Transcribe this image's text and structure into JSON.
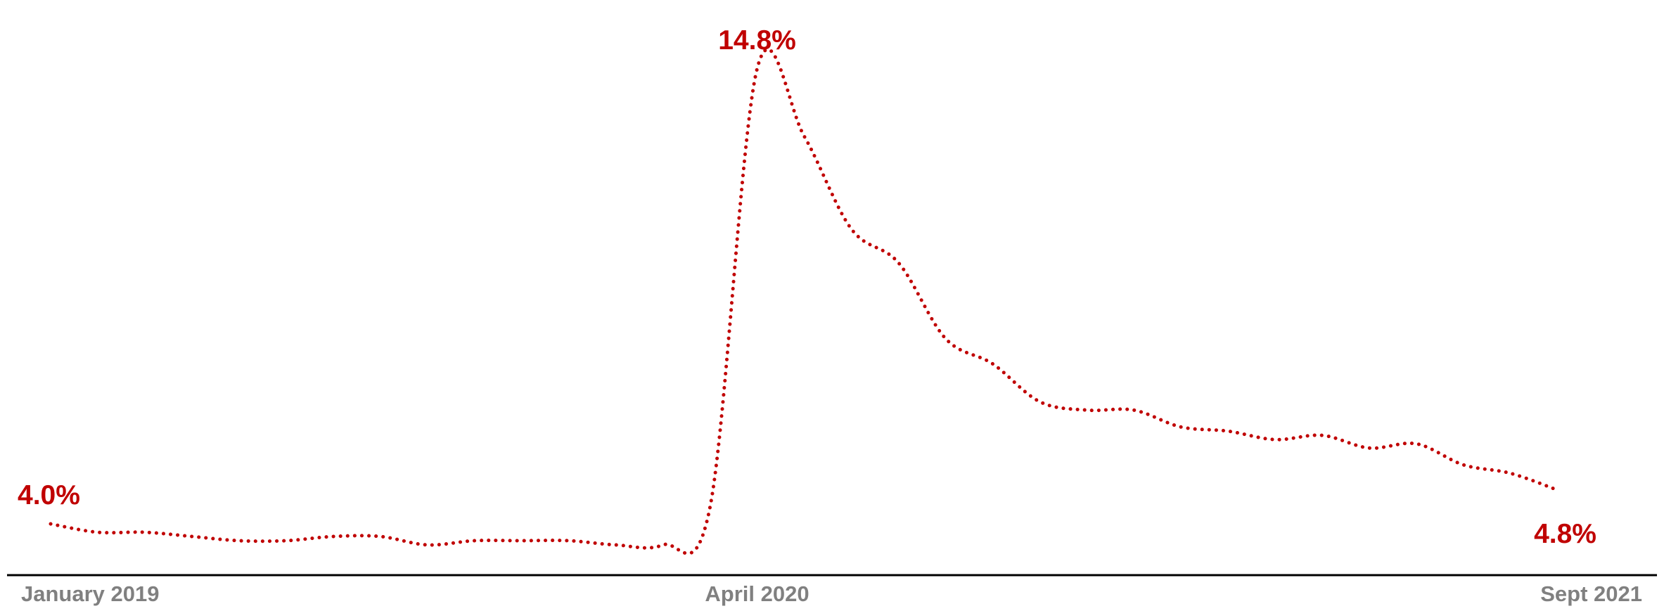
{
  "chart_data": {
    "type": "line",
    "title": "",
    "xlabel": "",
    "ylabel": "",
    "x": [
      "2019-01",
      "2019-02",
      "2019-03",
      "2019-04",
      "2019-05",
      "2019-06",
      "2019-07",
      "2019-08",
      "2019-09",
      "2019-10",
      "2019-11",
      "2019-12",
      "2020-01",
      "2020-02",
      "2020-03",
      "2020-04",
      "2020-05",
      "2020-06",
      "2020-07",
      "2020-08",
      "2020-09",
      "2020-10",
      "2020-11",
      "2020-12",
      "2021-01",
      "2021-02",
      "2021-03",
      "2021-04",
      "2021-05",
      "2021-06",
      "2021-07",
      "2021-08",
      "2021-09"
    ],
    "series": [
      {
        "values": [
          4.0,
          3.8,
          3.8,
          3.7,
          3.6,
          3.6,
          3.7,
          3.7,
          3.5,
          3.6,
          3.6,
          3.6,
          3.5,
          3.5,
          4.4,
          14.8,
          13.2,
          11.0,
          10.2,
          8.4,
          7.8,
          6.9,
          6.7,
          6.7,
          6.3,
          6.2,
          6.0,
          6.1,
          5.8,
          5.9,
          5.4,
          5.2,
          4.8
        ]
      }
    ],
    "x_ticks": [
      {
        "x": "2019-01",
        "label": "January 2019"
      },
      {
        "x": "2020-04",
        "label": "April 2020"
      },
      {
        "x": "2021-09",
        "label": "Sept 2021"
      }
    ],
    "annotations": [
      {
        "x": "2019-01",
        "value": 4.0,
        "label": "4.0%",
        "placement": "above"
      },
      {
        "x": "2020-04",
        "value": 14.8,
        "label": "14.8%",
        "placement": "above"
      },
      {
        "x": "2021-09",
        "value": 4.8,
        "label": "4.8%",
        "placement": "below"
      }
    ],
    "ylim": [
      3.2,
      15.6
    ],
    "grid": false,
    "legend": "none",
    "line_style": "dotted",
    "colors": {
      "line": "#c00000",
      "annotation": "#c00000",
      "tick_label": "#808080",
      "axis": "#000000"
    }
  }
}
